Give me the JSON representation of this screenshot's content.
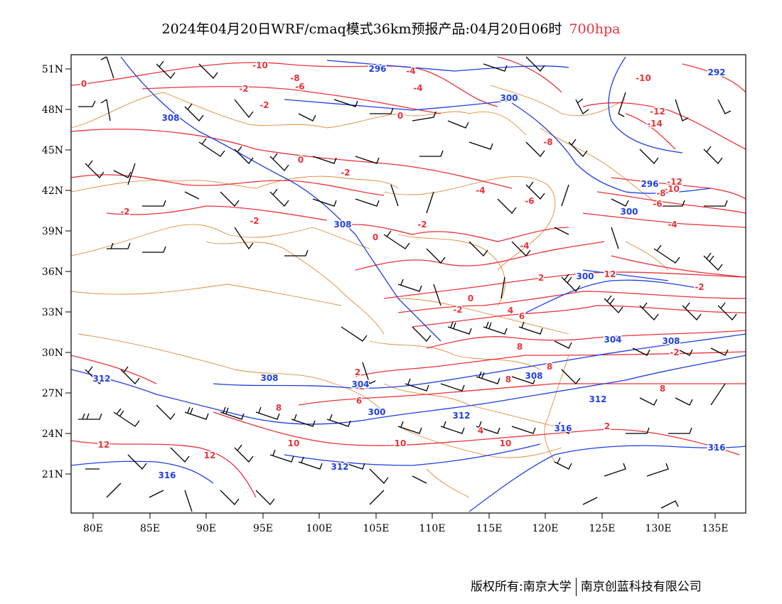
{
  "header": {
    "title": "2024年04月20日WRF/cmaq模式36km预报产品:04月20日06时",
    "level": "700hpa"
  },
  "footer": {
    "copyright": "版权所有:南京大学",
    "company": "南京创蓝科技有限公司"
  },
  "map": {
    "lon_ticks": [
      "80E",
      "85E",
      "90E",
      "95E",
      "100E",
      "105E",
      "110E",
      "115E",
      "120E",
      "125E",
      "130E",
      "135E"
    ],
    "lat_ticks": [
      "51N",
      "48N",
      "45N",
      "42N",
      "39N",
      "36N",
      "33N",
      "30N",
      "27N",
      "24N",
      "21N"
    ],
    "temperature_labels": [
      "-10",
      "-8",
      "-6",
      "-4",
      "-2",
      "-4",
      "-2",
      "0",
      "0",
      "0",
      "-2",
      "-10",
      "-12",
      "-14",
      "-12",
      "-10",
      "-8",
      "-6",
      "-8",
      "-6",
      "-4",
      "-4",
      "-2",
      "-2",
      "-2",
      "0",
      "-2",
      "-4",
      "-2",
      "0",
      "2",
      "4",
      "6",
      "8",
      "2",
      "2",
      "8",
      "8",
      "8",
      "8",
      "10",
      "10",
      "10",
      "12",
      "12",
      "12",
      "6",
      "4",
      "2",
      "-2"
    ],
    "height_labels": [
      "296",
      "292",
      "300",
      "304",
      "300",
      "300",
      "308",
      "308",
      "308",
      "308",
      "308",
      "312",
      "312",
      "312",
      "312",
      "316",
      "316",
      "316",
      "304",
      "300",
      "296"
    ],
    "colors": {
      "temperature": "#e8333a",
      "height": "#1f3fe0",
      "boundary": "#e08c3c",
      "wind": "#000000"
    }
  }
}
